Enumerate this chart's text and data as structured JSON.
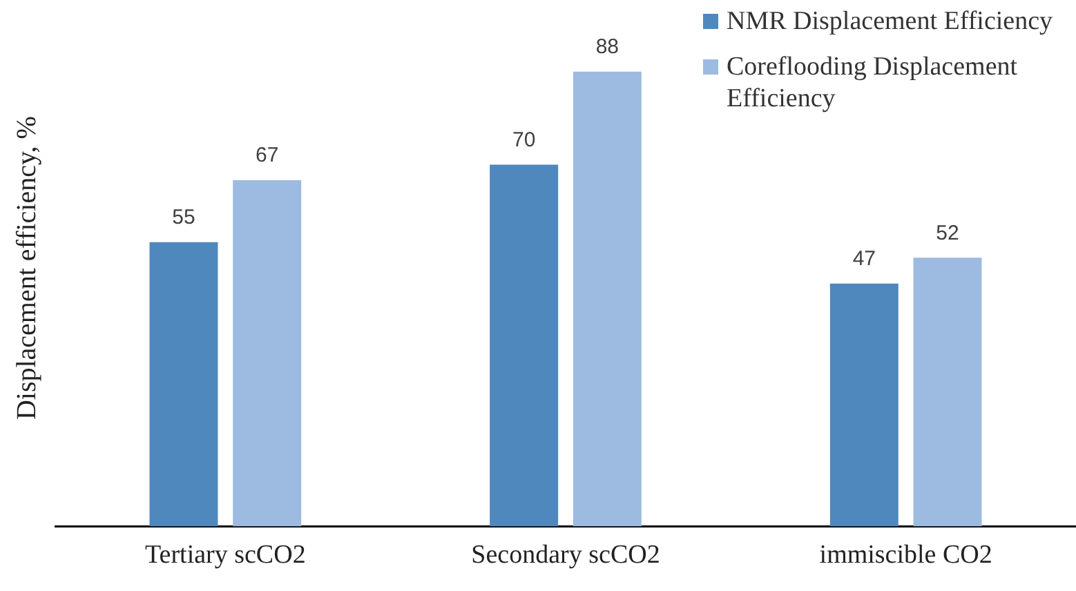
{
  "chart_data": {
    "type": "bar",
    "ylabel": "Displacement efficiency, %",
    "categories": [
      "Tertiary scCO2",
      "Secondary scCO2",
      "immiscible CO2"
    ],
    "series": [
      {
        "name": "NMR Displacement Efficiency",
        "color": "#4f88bd",
        "values": [
          55,
          70,
          47
        ]
      },
      {
        "name": "Coreflooding Displacement Efficiency",
        "color": "#9dbbe0",
        "values": [
          67,
          88,
          52
        ]
      }
    ],
    "ylim": [
      0,
      100
    ],
    "tick_labels": "x",
    "grid": false,
    "legend": "top right",
    "data_labels": true
  }
}
